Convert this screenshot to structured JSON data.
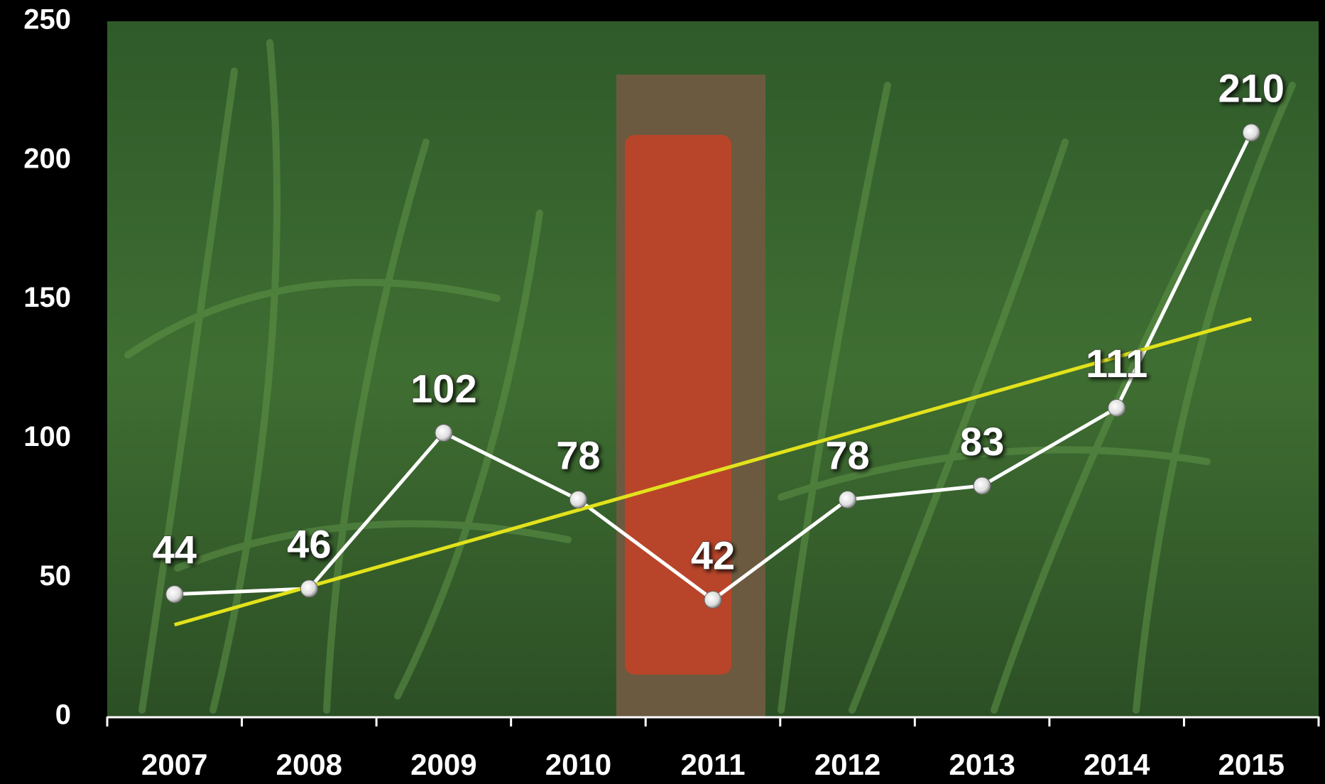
{
  "chart_data": {
    "type": "line",
    "categories": [
      "2007",
      "2008",
      "2009",
      "2010",
      "2011",
      "2012",
      "2013",
      "2014",
      "2015"
    ],
    "series": [
      {
        "color": "#ffffff",
        "values": [
          44,
          46,
          102,
          78,
          42,
          78,
          83,
          111,
          210
        ]
      }
    ],
    "trendline": {
      "color": "#e2e21c",
      "values": [
        33,
        143
      ]
    },
    "ylim": [
      0,
      250
    ],
    "yticks": [
      0,
      50,
      100,
      150,
      200,
      250
    ],
    "grid": false
  }
}
